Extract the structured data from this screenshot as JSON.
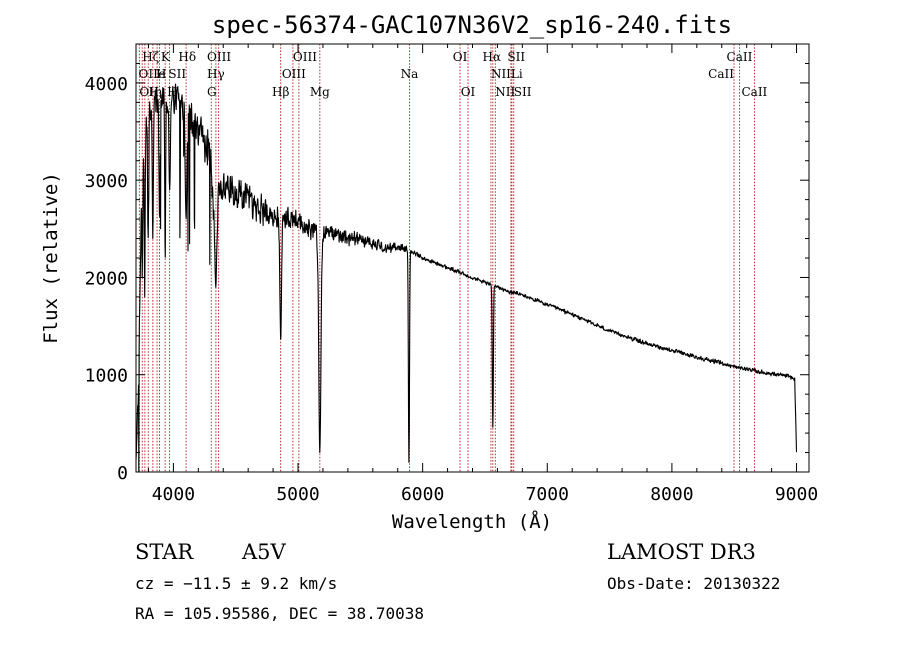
{
  "chart_data": {
    "type": "line",
    "title": "spec-56374-GAC107N36V2_sp16-240.fits",
    "xlabel": "Wavelength (Å)",
    "ylabel": "Flux (relative)",
    "xlim": [
      3700,
      9100
    ],
    "ylim": [
      0,
      4400
    ],
    "xticks": [
      4000,
      5000,
      6000,
      7000,
      8000,
      9000
    ],
    "yticks": [
      0,
      1000,
      2000,
      3000,
      4000
    ],
    "xtick_labels": [
      "4000",
      "5000",
      "6000",
      "7000",
      "8000",
      "9000"
    ],
    "ytick_labels": [
      "0",
      "1000",
      "2000",
      "3000",
      "4000"
    ],
    "spectrum_anchors": {
      "x": [
        3700,
        3720,
        3745,
        3780,
        3850,
        3900,
        3950,
        4000,
        4050,
        4100,
        4150,
        4200,
        4250,
        4300,
        4320,
        4400,
        4500,
        4600,
        4700,
        4800,
        4900,
        5000,
        5100,
        5200,
        5300,
        5400,
        5500,
        5600,
        5700,
        5800,
        5900,
        6000,
        6100,
        6200,
        6300,
        6400,
        6500,
        6600,
        6700,
        6800,
        7000,
        7200,
        7500,
        7800,
        8000,
        8200,
        8400,
        8500,
        8600,
        8700,
        8800,
        8950,
        8985,
        9000
      ],
      "y": [
        100,
        900,
        2900,
        3600,
        3800,
        3800,
        3850,
        3900,
        3800,
        3700,
        3600,
        3500,
        3400,
        3300,
        2600,
        2950,
        2900,
        2800,
        2700,
        2650,
        2600,
        2550,
        2500,
        2450,
        2450,
        2400,
        2400,
        2350,
        2300,
        2320,
        2280,
        2200,
        2150,
        2100,
        2050,
        2000,
        1950,
        1900,
        1850,
        1820,
        1720,
        1620,
        1450,
        1320,
        1250,
        1180,
        1120,
        1080,
        1060,
        1030,
        1010,
        980,
        950,
        200
      ]
    },
    "absorption_features": [
      {
        "wavelength": 3750,
        "depth": 2000,
        "width": 5
      },
      {
        "wavelength": 3770,
        "depth": 1800,
        "width": 5
      },
      {
        "wavelength": 3797,
        "depth": 2400,
        "width": 6
      },
      {
        "wavelength": 3835,
        "depth": 2400,
        "width": 6
      },
      {
        "wavelength": 3889,
        "depth": 2600,
        "width": 7
      },
      {
        "wavelength": 3934,
        "depth": 2200,
        "width": 5
      },
      {
        "wavelength": 3970,
        "depth": 2900,
        "width": 8
      },
      {
        "wavelength": 4102,
        "depth": 2600,
        "width": 9
      },
      {
        "wavelength": 4340,
        "depth": 1900,
        "width": 10
      },
      {
        "wavelength": 4861,
        "depth": 1350,
        "width": 9
      },
      {
        "wavelength": 5175,
        "depth": 200,
        "width": 12
      },
      {
        "wavelength": 5890,
        "depth": 100,
        "width": 6
      },
      {
        "wavelength": 6563,
        "depth": 450,
        "width": 6
      }
    ],
    "noise": {
      "blue_amplitude": 220,
      "red_amplitude": 25,
      "transition_start": 4300,
      "transition_end": 6000,
      "seed": 56374
    },
    "spectral_lines": [
      {
        "wavelength": 3727,
        "label": "OII",
        "row": 3,
        "align": "start"
      },
      {
        "wavelength": 3750,
        "label": "",
        "row": 0,
        "align": "start"
      },
      {
        "wavelength": 3771,
        "label": "",
        "row": 0,
        "align": "start"
      },
      {
        "wavelength": 3798,
        "label": "",
        "row": 0,
        "align": "start"
      },
      {
        "wavelength": 3835,
        "label": "",
        "row": 0,
        "align": "start"
      },
      {
        "wavelength": 3869,
        "label": "",
        "row": 0,
        "align": "start"
      },
      {
        "wavelength": 3889,
        "label": "",
        "row": 0,
        "align": "start"
      },
      {
        "wavelength": 3934,
        "label": "",
        "row": 0,
        "align": "start"
      },
      {
        "wavelength": 3969,
        "label": "",
        "row": 0,
        "align": "start"
      },
      {
        "wavelength": 4102,
        "label": "",
        "row": 0,
        "align": "start"
      },
      {
        "wavelength": 4304,
        "label": "",
        "row": 0,
        "align": "start"
      },
      {
        "wavelength": 4341,
        "label": "",
        "row": 0,
        "align": "start"
      },
      {
        "wavelength": 4363,
        "label": "",
        "row": 0,
        "align": "start"
      },
      {
        "wavelength": 4861,
        "label": "Hβ",
        "row": 3,
        "align": "middle"
      },
      {
        "wavelength": 4959,
        "label": "",
        "row": 0,
        "align": "start"
      },
      {
        "wavelength": 5007,
        "label": "",
        "row": 0,
        "align": "start"
      },
      {
        "wavelength": 5175,
        "label": "Mg",
        "row": 3,
        "align": "middle"
      },
      {
        "wavelength": 5894,
        "label": "Na",
        "row": 2,
        "align": "middle"
      },
      {
        "wavelength": 6300,
        "label": "OI",
        "row": 1,
        "align": "middle"
      },
      {
        "wavelength": 6364,
        "label": "OI",
        "row": 3,
        "align": "middle"
      },
      {
        "wavelength": 6548,
        "label": "NII",
        "row": 2,
        "align": "start"
      },
      {
        "wavelength": 6563,
        "label": "",
        "row": 0,
        "align": "start"
      },
      {
        "wavelength": 6583,
        "label": "NII",
        "row": 3,
        "align": "start"
      },
      {
        "wavelength": 6708,
        "label": "Li",
        "row": 2,
        "align": "start"
      },
      {
        "wavelength": 6716,
        "label": "",
        "row": 0,
        "align": "start"
      },
      {
        "wavelength": 6731,
        "label": "SII",
        "row": 3,
        "align": "start"
      },
      {
        "wavelength": 8498,
        "label": "CaII",
        "row": 2,
        "align": "end"
      },
      {
        "wavelength": 8542,
        "label": "CaII",
        "row": 1,
        "align": "middle"
      },
      {
        "wavelength": 8662,
        "label": "CaII",
        "row": 3,
        "align": "middle"
      }
    ],
    "crowded_labels": [
      {
        "text": "Hζ",
        "wavelength": 3750,
        "row": 1,
        "align": "start"
      },
      {
        "text": "K",
        "wavelength": 3900,
        "row": 1,
        "align": "start"
      },
      {
        "text": "Hδ",
        "wavelength": 4040,
        "row": 1,
        "align": "start"
      },
      {
        "text": "OIII",
        "wavelength": 4270,
        "row": 1,
        "align": "start"
      },
      {
        "text": "OIII",
        "wavelength": 4959,
        "row": 1,
        "align": "start"
      },
      {
        "text": "Hα",
        "wavelength": 6480,
        "row": 1,
        "align": "start"
      },
      {
        "text": "SII",
        "wavelength": 6680,
        "row": 1,
        "align": "start"
      },
      {
        "text": "OII",
        "wavelength": 3720,
        "row": 2,
        "align": "start"
      },
      {
        "text": "H",
        "wavelength": 3860,
        "row": 2,
        "align": "start"
      },
      {
        "text": "e",
        "wavelength": 3880,
        "row": 2,
        "align": "start"
      },
      {
        "text": "SII",
        "wavelength": 3960,
        "row": 2,
        "align": "start"
      },
      {
        "text": "Hγ",
        "wavelength": 4270,
        "row": 2,
        "align": "start"
      },
      {
        "text": "OIII",
        "wavelength": 4870,
        "row": 2,
        "align": "start"
      },
      {
        "text": "H",
        "wavelength": 3800,
        "row": 3,
        "align": "start"
      },
      {
        "text": "η",
        "wavelength": 3850,
        "row": 3,
        "align": "start"
      },
      {
        "text": "H",
        "wavelength": 3950,
        "row": 3,
        "align": "start"
      },
      {
        "text": "G",
        "wavelength": 4270,
        "row": 3,
        "align": "start"
      }
    ]
  },
  "info": {
    "class": "STAR",
    "subclass": "A5V",
    "survey": "LAMOST DR3",
    "redshift": "cz = −11.5 ± 9.2 km/s",
    "obs_date": "Obs-Date: 20130322",
    "coords": "RA = 105.95586, DEC =  38.70038"
  },
  "colors": {
    "spectrum": "#000000",
    "line_marker": "#b22222",
    "axis": "#000000"
  }
}
